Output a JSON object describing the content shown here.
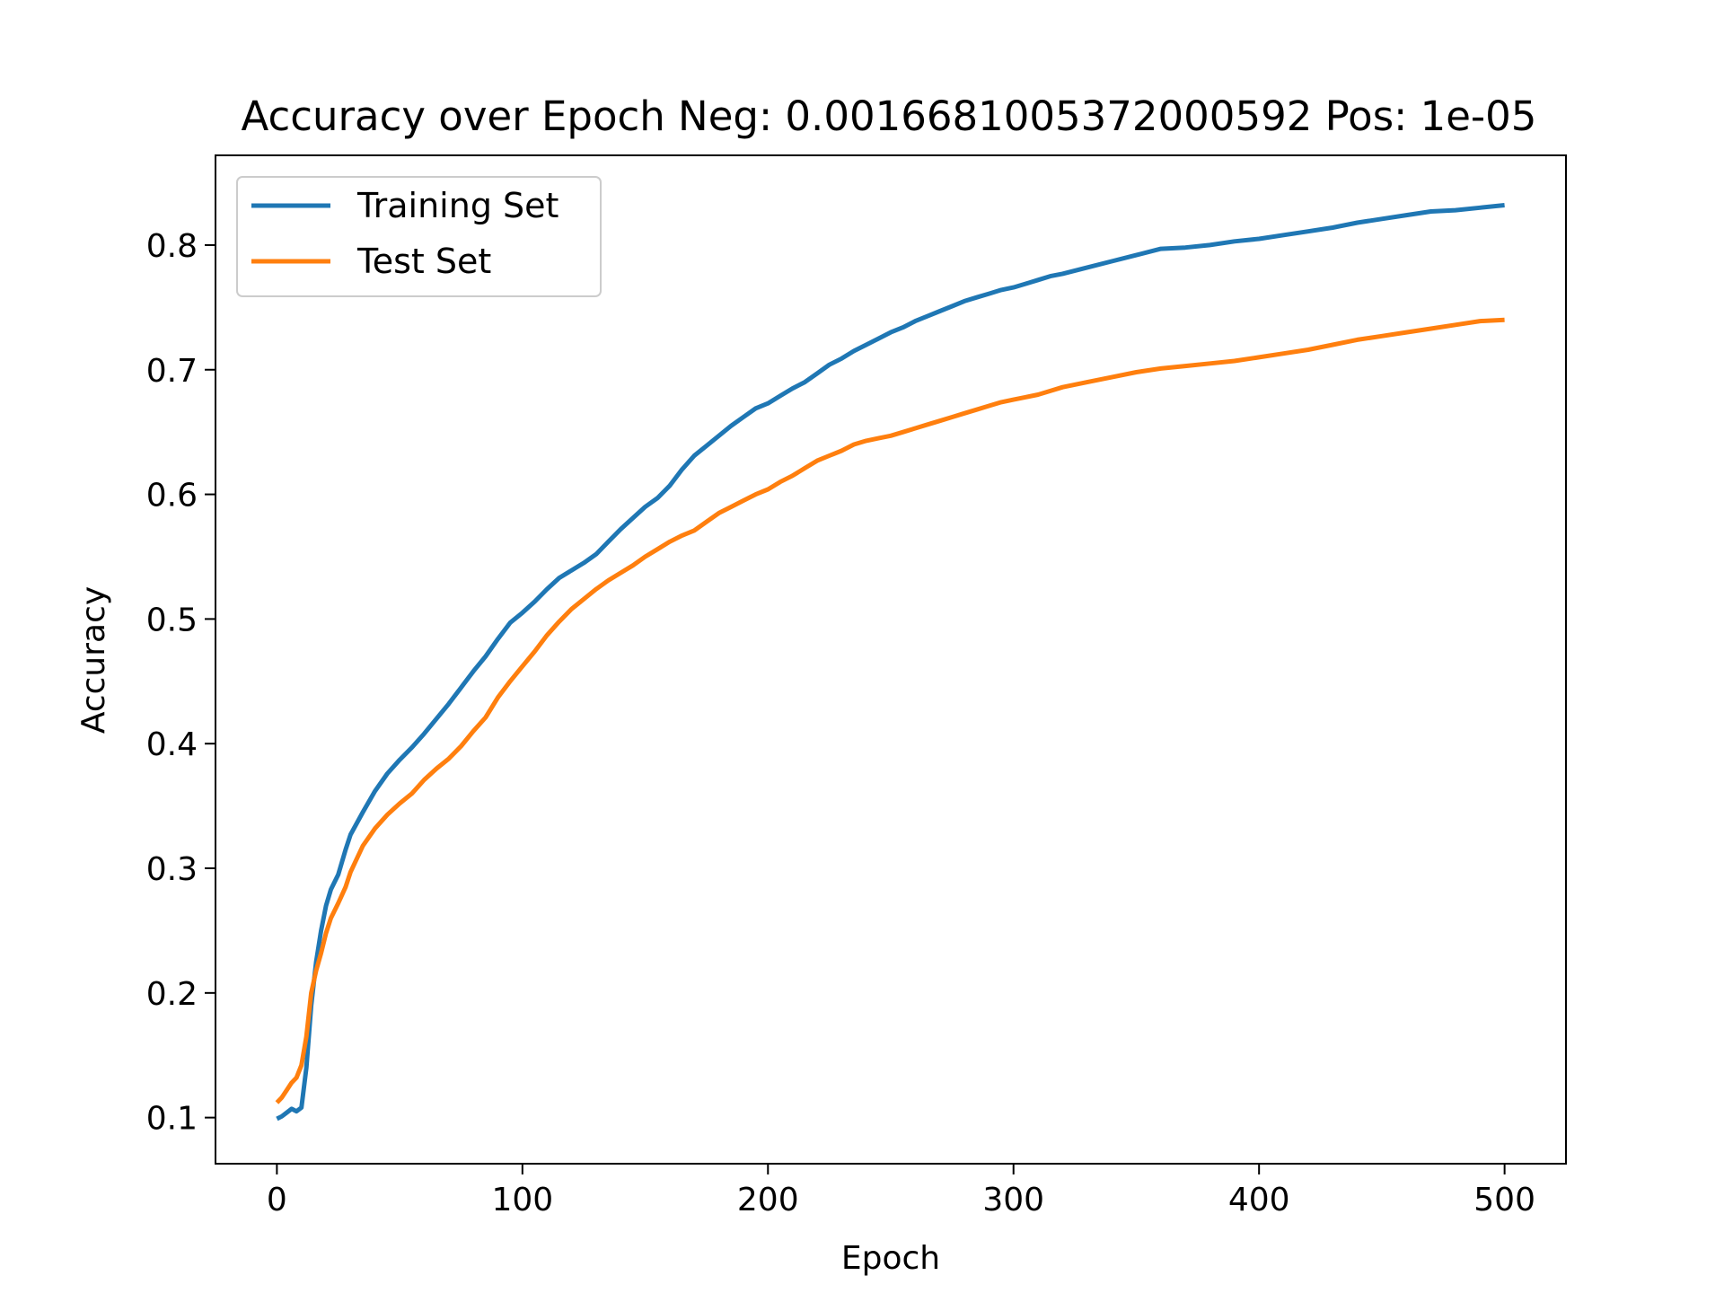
{
  "chart_data": {
    "type": "line",
    "title": "Accuracy over Epoch Neg: 0.0016681005372000592 Pos: 1e-05",
    "xlabel": "Epoch",
    "ylabel": "Accuracy",
    "xlim": [
      -25,
      525
    ],
    "ylim": [
      0.063,
      0.872
    ],
    "xticks": [
      0,
      100,
      200,
      300,
      400,
      500
    ],
    "xtick_labels": [
      "0",
      "100",
      "200",
      "300",
      "400",
      "500"
    ],
    "yticks": [
      0.1,
      0.2,
      0.3,
      0.4,
      0.5,
      0.6,
      0.7,
      0.8
    ],
    "ytick_labels": [
      "0.1",
      "0.2",
      "0.3",
      "0.4",
      "0.5",
      "0.6",
      "0.7",
      "0.8"
    ],
    "grid": false,
    "legend_position": "upper-left",
    "series": [
      {
        "name": "Training Set",
        "color": "#1f77b4",
        "points": [
          [
            0,
            0.099
          ],
          [
            2,
            0.101
          ],
          [
            4,
            0.104
          ],
          [
            6,
            0.107
          ],
          [
            8,
            0.105
          ],
          [
            10,
            0.108
          ],
          [
            12,
            0.14
          ],
          [
            14,
            0.19
          ],
          [
            16,
            0.225
          ],
          [
            18,
            0.25
          ],
          [
            20,
            0.27
          ],
          [
            22,
            0.283
          ],
          [
            25,
            0.295
          ],
          [
            28,
            0.315
          ],
          [
            30,
            0.327
          ],
          [
            35,
            0.345
          ],
          [
            40,
            0.362
          ],
          [
            45,
            0.376
          ],
          [
            50,
            0.387
          ],
          [
            55,
            0.397
          ],
          [
            60,
            0.408
          ],
          [
            65,
            0.42
          ],
          [
            70,
            0.432
          ],
          [
            75,
            0.445
          ],
          [
            80,
            0.458
          ],
          [
            85,
            0.47
          ],
          [
            90,
            0.484
          ],
          [
            95,
            0.497
          ],
          [
            100,
            0.505
          ],
          [
            105,
            0.514
          ],
          [
            110,
            0.524
          ],
          [
            115,
            0.533
          ],
          [
            120,
            0.539
          ],
          [
            125,
            0.545
          ],
          [
            130,
            0.552
          ],
          [
            135,
            0.562
          ],
          [
            140,
            0.572
          ],
          [
            145,
            0.581
          ],
          [
            150,
            0.59
          ],
          [
            155,
            0.597
          ],
          [
            160,
            0.607
          ],
          [
            165,
            0.62
          ],
          [
            170,
            0.631
          ],
          [
            175,
            0.639
          ],
          [
            180,
            0.647
          ],
          [
            185,
            0.655
          ],
          [
            190,
            0.662
          ],
          [
            195,
            0.669
          ],
          [
            200,
            0.673
          ],
          [
            205,
            0.679
          ],
          [
            210,
            0.685
          ],
          [
            215,
            0.69
          ],
          [
            220,
            0.697
          ],
          [
            225,
            0.704
          ],
          [
            230,
            0.709
          ],
          [
            235,
            0.715
          ],
          [
            240,
            0.72
          ],
          [
            245,
            0.725
          ],
          [
            250,
            0.73
          ],
          [
            255,
            0.734
          ],
          [
            260,
            0.739
          ],
          [
            265,
            0.743
          ],
          [
            270,
            0.747
          ],
          [
            275,
            0.751
          ],
          [
            280,
            0.755
          ],
          [
            285,
            0.758
          ],
          [
            290,
            0.761
          ],
          [
            295,
            0.764
          ],
          [
            300,
            0.766
          ],
          [
            305,
            0.769
          ],
          [
            310,
            0.772
          ],
          [
            315,
            0.775
          ],
          [
            320,
            0.777
          ],
          [
            330,
            0.782
          ],
          [
            340,
            0.787
          ],
          [
            350,
            0.792
          ],
          [
            360,
            0.797
          ],
          [
            370,
            0.798
          ],
          [
            380,
            0.8
          ],
          [
            390,
            0.803
          ],
          [
            400,
            0.805
          ],
          [
            410,
            0.808
          ],
          [
            420,
            0.811
          ],
          [
            430,
            0.814
          ],
          [
            440,
            0.818
          ],
          [
            450,
            0.821
          ],
          [
            460,
            0.824
          ],
          [
            470,
            0.827
          ],
          [
            480,
            0.828
          ],
          [
            490,
            0.83
          ],
          [
            500,
            0.832
          ]
        ]
      },
      {
        "name": "Test Set",
        "color": "#ff7f0e",
        "points": [
          [
            0,
            0.112
          ],
          [
            2,
            0.116
          ],
          [
            4,
            0.122
          ],
          [
            6,
            0.128
          ],
          [
            8,
            0.132
          ],
          [
            10,
            0.142
          ],
          [
            12,
            0.165
          ],
          [
            14,
            0.2
          ],
          [
            16,
            0.218
          ],
          [
            18,
            0.232
          ],
          [
            20,
            0.248
          ],
          [
            22,
            0.26
          ],
          [
            25,
            0.272
          ],
          [
            28,
            0.285
          ],
          [
            30,
            0.297
          ],
          [
            35,
            0.318
          ],
          [
            40,
            0.332
          ],
          [
            45,
            0.343
          ],
          [
            50,
            0.352
          ],
          [
            55,
            0.36
          ],
          [
            60,
            0.371
          ],
          [
            65,
            0.38
          ],
          [
            70,
            0.388
          ],
          [
            75,
            0.398
          ],
          [
            80,
            0.41
          ],
          [
            85,
            0.421
          ],
          [
            90,
            0.437
          ],
          [
            95,
            0.45
          ],
          [
            100,
            0.462
          ],
          [
            105,
            0.474
          ],
          [
            110,
            0.487
          ],
          [
            115,
            0.498
          ],
          [
            120,
            0.508
          ],
          [
            125,
            0.516
          ],
          [
            130,
            0.524
          ],
          [
            135,
            0.531
          ],
          [
            140,
            0.537
          ],
          [
            145,
            0.543
          ],
          [
            150,
            0.55
          ],
          [
            155,
            0.556
          ],
          [
            160,
            0.562
          ],
          [
            165,
            0.567
          ],
          [
            170,
            0.571
          ],
          [
            175,
            0.578
          ],
          [
            180,
            0.585
          ],
          [
            185,
            0.59
          ],
          [
            190,
            0.595
          ],
          [
            195,
            0.6
          ],
          [
            200,
            0.604
          ],
          [
            205,
            0.61
          ],
          [
            210,
            0.615
          ],
          [
            215,
            0.621
          ],
          [
            220,
            0.627
          ],
          [
            225,
            0.631
          ],
          [
            230,
            0.635
          ],
          [
            235,
            0.64
          ],
          [
            240,
            0.643
          ],
          [
            245,
            0.645
          ],
          [
            250,
            0.647
          ],
          [
            255,
            0.65
          ],
          [
            260,
            0.653
          ],
          [
            265,
            0.656
          ],
          [
            270,
            0.659
          ],
          [
            275,
            0.662
          ],
          [
            280,
            0.665
          ],
          [
            285,
            0.668
          ],
          [
            290,
            0.671
          ],
          [
            295,
            0.674
          ],
          [
            300,
            0.676
          ],
          [
            305,
            0.678
          ],
          [
            310,
            0.68
          ],
          [
            315,
            0.683
          ],
          [
            320,
            0.686
          ],
          [
            330,
            0.69
          ],
          [
            340,
            0.694
          ],
          [
            350,
            0.698
          ],
          [
            360,
            0.701
          ],
          [
            370,
            0.703
          ],
          [
            380,
            0.705
          ],
          [
            390,
            0.707
          ],
          [
            400,
            0.71
          ],
          [
            410,
            0.713
          ],
          [
            420,
            0.716
          ],
          [
            430,
            0.72
          ],
          [
            440,
            0.724
          ],
          [
            450,
            0.727
          ],
          [
            460,
            0.73
          ],
          [
            470,
            0.733
          ],
          [
            480,
            0.736
          ],
          [
            490,
            0.739
          ],
          [
            500,
            0.74
          ]
        ]
      }
    ]
  }
}
